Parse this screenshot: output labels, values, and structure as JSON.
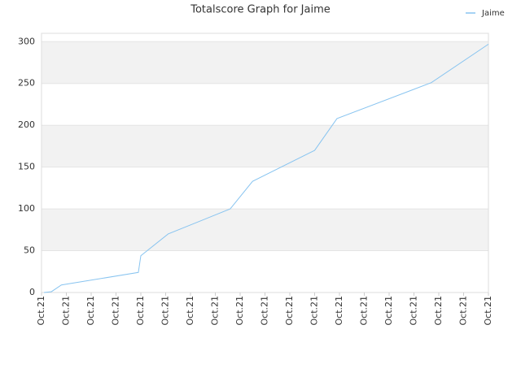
{
  "chart_data": {
    "type": "line",
    "title": "Totalscore Graph for Jaime",
    "x": [
      0.1,
      0.4,
      0.8,
      3.9,
      4.0,
      5.1,
      7.6,
      8.5,
      11.0,
      11.9,
      15.7,
      18.0
    ],
    "series": [
      {
        "name": "Jaime",
        "color": "#88c4f0",
        "values": [
          0,
          1,
          9,
          24,
          44,
          70,
          100,
          133,
          170,
          208,
          251,
          297
        ]
      }
    ],
    "xlim": [
      0,
      18
    ],
    "xticks": [
      {
        "value": 0,
        "label": "Oct.21"
      },
      {
        "value": 1,
        "label": "Oct.21"
      },
      {
        "value": 2,
        "label": "Oct.21"
      },
      {
        "value": 3,
        "label": "Oct.21"
      },
      {
        "value": 4,
        "label": "Oct.21"
      },
      {
        "value": 5,
        "label": "Oct.21"
      },
      {
        "value": 6,
        "label": "Oct.21"
      },
      {
        "value": 7,
        "label": "Oct.21"
      },
      {
        "value": 8,
        "label": "Oct.21"
      },
      {
        "value": 9,
        "label": "Oct.21"
      },
      {
        "value": 10,
        "label": "Oct.21"
      },
      {
        "value": 11,
        "label": "Oct.21"
      },
      {
        "value": 12,
        "label": "Oct.21"
      },
      {
        "value": 13,
        "label": "Oct.21"
      },
      {
        "value": 14,
        "label": "Oct.21"
      },
      {
        "value": 15,
        "label": "Oct.21"
      },
      {
        "value": 16,
        "label": "Oct.21"
      },
      {
        "value": 17,
        "label": "Oct.21"
      },
      {
        "value": 18,
        "label": "Oct.21"
      }
    ],
    "ylim": [
      0,
      310
    ],
    "yticks": [
      0,
      50,
      100,
      150,
      200,
      250,
      300
    ],
    "grid": true,
    "legend": "top-right"
  }
}
